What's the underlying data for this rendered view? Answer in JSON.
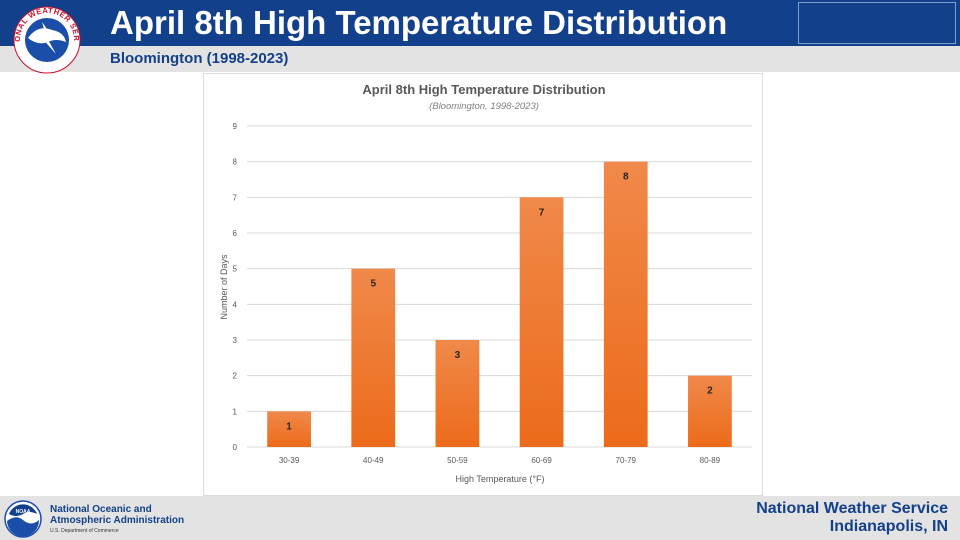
{
  "header": {
    "title": "April 8th High Temperature Distribution",
    "subtitle": "Bloomington (1998-2023)"
  },
  "logos": {
    "nws_seal_text": "NATIONAL WEATHER SERVICE",
    "noaa_mark_text": "NOAA"
  },
  "footer": {
    "noaa_line1": "National Oceanic and",
    "noaa_line2": "Atmospheric Administration",
    "noaa_line3": "U.S. Department of Commerce",
    "office_line1": "National Weather Service",
    "office_line2": "Indianapolis, IN"
  },
  "colors": {
    "header_blue": "#12408a",
    "bar_orange_top": "#f0894a",
    "bar_orange_bottom": "#ec6b1a",
    "grid": "#d9d9d9"
  },
  "chart_data": {
    "type": "bar",
    "title": "April 8th High Temperature Distribution",
    "subtitle": "(Bloomington, 1998-2023)",
    "xlabel": "High Temperature (°F)",
    "ylabel": "Number of Days",
    "categories": [
      "30-39",
      "40-49",
      "50-59",
      "60-69",
      "70-79",
      "80-89"
    ],
    "values": [
      1,
      5,
      3,
      7,
      8,
      2
    ],
    "ylim": [
      0,
      9
    ],
    "yticks": [
      0,
      1,
      2,
      3,
      4,
      5,
      6,
      7,
      8,
      9
    ],
    "grid": true,
    "legend": "none"
  }
}
